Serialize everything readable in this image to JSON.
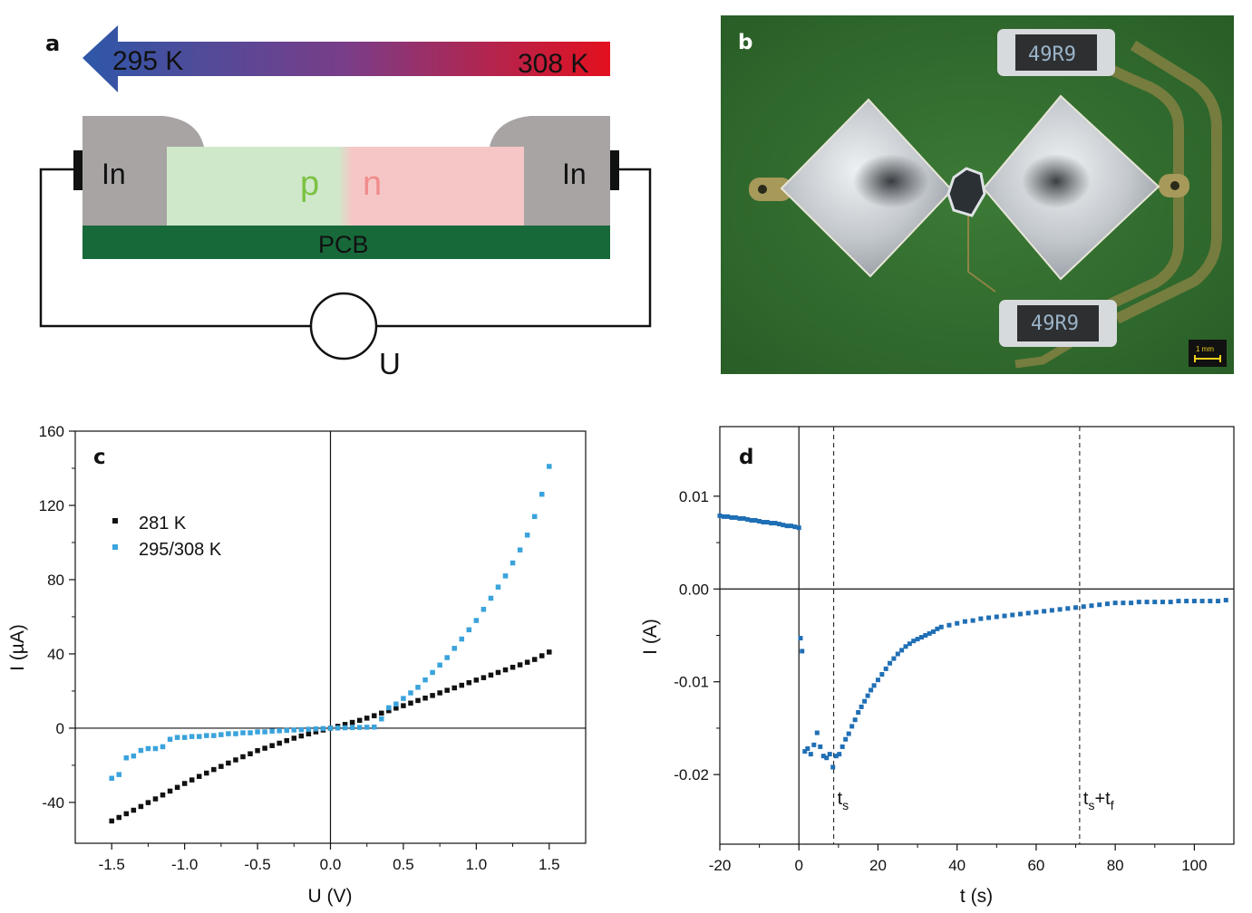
{
  "panel_a": {
    "label": "a",
    "arrow_left_text": "295 K",
    "arrow_right_text": "308 K",
    "contact_left": "In",
    "contact_right": "In",
    "p_label": "p",
    "n_label": "n",
    "pcb_label": "PCB",
    "voltmeter_label": "U",
    "colors": {
      "cold": "#2e57a8",
      "hot": "#e3101e",
      "contact": "#a8a4a4",
      "p_region": "#cfe8c9",
      "n_region": "#f6c6c6",
      "pcb": "#17693a",
      "p_text": "#7cc243",
      "n_text": "#f08c8c"
    }
  },
  "panel_b": {
    "label": "b",
    "resistor_top": "49R9",
    "resistor_bottom": "49R9",
    "scale_bar": "1 mm",
    "colors": {
      "board": "#2f6b2c",
      "metal": "#c9cdd2",
      "trace": "#9a8c48"
    }
  },
  "chart_data": [
    {
      "type": "scatter",
      "panel_label": "c",
      "xlabel": "U (V)",
      "ylabel": "I (µA)",
      "xlim": [
        -1.75,
        1.75
      ],
      "ylim": [
        -62,
        160
      ],
      "xticks": [
        "-1.5",
        "-1.0",
        "-0.5",
        "0.0",
        "0.5",
        "1.0",
        "1.5"
      ],
      "xtick_values": [
        -1.5,
        -1.0,
        -0.5,
        0.0,
        0.5,
        1.0,
        1.5
      ],
      "yticks": [
        "-40",
        "0",
        "40",
        "80",
        "120",
        "160"
      ],
      "ytick_values": [
        -40,
        0,
        40,
        80,
        120,
        160
      ],
      "grid": false,
      "legend_position": "upper-left",
      "zero_lines": true,
      "series": [
        {
          "name": "281 K",
          "color": "#111111",
          "x": [
            -1.5,
            -1.45,
            -1.4,
            -1.35,
            -1.3,
            -1.25,
            -1.2,
            -1.15,
            -1.1,
            -1.05,
            -1.0,
            -0.95,
            -0.9,
            -0.85,
            -0.8,
            -0.75,
            -0.7,
            -0.65,
            -0.6,
            -0.55,
            -0.5,
            -0.45,
            -0.4,
            -0.35,
            -0.3,
            -0.25,
            -0.2,
            -0.15,
            -0.1,
            -0.05,
            0.0,
            0.05,
            0.1,
            0.15,
            0.2,
            0.25,
            0.3,
            0.35,
            0.4,
            0.45,
            0.5,
            0.55,
            0.6,
            0.65,
            0.7,
            0.75,
            0.8,
            0.85,
            0.9,
            0.95,
            1.0,
            1.05,
            1.1,
            1.15,
            1.2,
            1.25,
            1.3,
            1.35,
            1.4,
            1.45,
            1.5
          ],
          "y": [
            -50.0,
            -48.1,
            -46.1,
            -44.2,
            -42.2,
            -40.1,
            -38.1,
            -36.0,
            -33.9,
            -31.9,
            -29.8,
            -27.9,
            -26.0,
            -24.2,
            -22.3,
            -20.6,
            -18.8,
            -17.1,
            -15.4,
            -13.8,
            -12.1,
            -10.8,
            -9.4,
            -8.1,
            -6.7,
            -5.4,
            -4.2,
            -3.1,
            -2.0,
            -1.0,
            0.0,
            1.0,
            2.0,
            3.1,
            4.2,
            5.4,
            6.7,
            8.1,
            9.4,
            10.8,
            12.1,
            13.5,
            14.9,
            16.2,
            17.6,
            19.0,
            20.4,
            21.7,
            23.1,
            24.5,
            25.9,
            27.2,
            28.6,
            30.0,
            31.4,
            32.8,
            34.1,
            35.5,
            37.0,
            39.0,
            41.0
          ]
        },
        {
          "name": "295/308 K",
          "color": "#3aa3dc",
          "x": [
            -1.5,
            -1.45,
            -1.4,
            -1.35,
            -1.3,
            -1.25,
            -1.2,
            -1.15,
            -1.1,
            -1.05,
            -1.0,
            -0.95,
            -0.9,
            -0.85,
            -0.8,
            -0.75,
            -0.7,
            -0.65,
            -0.6,
            -0.55,
            -0.5,
            -0.45,
            -0.4,
            -0.35,
            -0.3,
            -0.25,
            -0.2,
            -0.15,
            -0.1,
            -0.05,
            0.0,
            0.05,
            0.1,
            0.15,
            0.2,
            0.25,
            0.3,
            0.35,
            0.4,
            0.45,
            0.5,
            0.55,
            0.6,
            0.65,
            0.7,
            0.75,
            0.8,
            0.85,
            0.9,
            0.95,
            1.0,
            1.05,
            1.1,
            1.15,
            1.2,
            1.25,
            1.3,
            1.35,
            1.4,
            1.45,
            1.5
          ],
          "y": [
            -27.0,
            -25.0,
            -16.0,
            -15.0,
            -12.0,
            -11.0,
            -11.0,
            -10.0,
            -6.0,
            -5.0,
            -5.0,
            -4.5,
            -4.5,
            -4.0,
            -4.0,
            -3.5,
            -3.0,
            -3.0,
            -2.5,
            -2.5,
            -2.0,
            -2.0,
            -1.6,
            -1.4,
            -1.2,
            -1.0,
            -0.8,
            -0.6,
            -0.4,
            -0.2,
            0.0,
            0.1,
            0.2,
            0.3,
            0.4,
            0.5,
            0.6,
            5.0,
            11.0,
            13.0,
            16.0,
            19.0,
            22.0,
            26.0,
            30.0,
            34.0,
            38.0,
            43.0,
            48.0,
            53.0,
            58.0,
            64.0,
            70.0,
            76.0,
            82.0,
            89.0,
            96.0,
            104.0,
            114.0,
            126.0,
            141.0
          ]
        }
      ]
    },
    {
      "type": "scatter",
      "panel_label": "d",
      "xlabel": "t (s)",
      "ylabel": "I (A)",
      "xlim": [
        -20,
        110
      ],
      "ylim": [
        -0.0275,
        0.0175
      ],
      "xticks": [
        "-20",
        "0",
        "20",
        "40",
        "60",
        "80",
        "100"
      ],
      "xtick_values": [
        -20,
        0,
        20,
        40,
        60,
        80,
        100
      ],
      "yticks": [
        "-0.02",
        "-0.01",
        "0.00",
        "0.01"
      ],
      "ytick_values": [
        -0.02,
        -0.01,
        0.0,
        0.01
      ],
      "grid": false,
      "zero_lines": true,
      "annotations": [
        {
          "label": "t",
          "sub": "s",
          "suffix": "",
          "suffix_sub": "",
          "x": 8.8
        },
        {
          "label": "t",
          "sub": "s",
          "suffix": "+t",
          "suffix_sub": "f",
          "x": 71.0
        }
      ],
      "series": [
        {
          "name": "",
          "color": "#1f6fb5",
          "x": [
            -20,
            -19,
            -18,
            -17,
            -16,
            -15,
            -14,
            -13,
            -12,
            -11,
            -10,
            -9,
            -8,
            -7,
            -6,
            -5,
            -4,
            -3,
            -2,
            -1,
            0,
            0.4,
            0.8,
            1.5,
            2.2,
            3.0,
            3.8,
            4.6,
            5.4,
            6.2,
            7.0,
            7.8,
            8.6,
            9.4,
            10.2,
            11.0,
            11.8,
            12.6,
            13.4,
            14.2,
            15.0,
            15.8,
            16.6,
            17.4,
            18.2,
            19.0,
            20,
            21,
            22,
            23,
            24,
            25,
            26,
            27,
            28,
            29,
            30,
            31,
            32,
            33,
            34,
            35,
            36,
            38,
            40,
            42,
            44,
            46,
            48,
            50,
            52,
            54,
            56,
            58,
            60,
            62,
            64,
            66,
            68,
            70,
            72,
            74,
            76,
            78,
            80,
            82,
            84,
            86,
            88,
            90,
            92,
            94,
            96,
            98,
            100,
            102,
            104,
            106,
            108
          ],
          "y": [
            0.0079,
            0.0078,
            0.0078,
            0.0077,
            0.0077,
            0.0076,
            0.0076,
            0.0075,
            0.0074,
            0.0074,
            0.0073,
            0.0072,
            0.0072,
            0.0071,
            0.0071,
            0.007,
            0.0069,
            0.0068,
            0.0068,
            0.0067,
            0.0066,
            -0.0053,
            -0.0067,
            -0.0175,
            -0.0172,
            -0.0178,
            -0.0168,
            -0.0155,
            -0.017,
            -0.018,
            -0.0182,
            -0.0178,
            -0.0192,
            -0.018,
            -0.0178,
            -0.017,
            -0.0162,
            -0.0156,
            -0.0148,
            -0.0141,
            -0.0133,
            -0.0127,
            -0.0121,
            -0.0115,
            -0.0109,
            -0.0104,
            -0.0098,
            -0.0092,
            -0.0086,
            -0.008,
            -0.0075,
            -0.007,
            -0.0066,
            -0.0062,
            -0.0059,
            -0.0056,
            -0.0054,
            -0.0052,
            -0.005,
            -0.0048,
            -0.0046,
            -0.0043,
            -0.0041,
            -0.0039,
            -0.0037,
            -0.0035,
            -0.0034,
            -0.0032,
            -0.0031,
            -0.003,
            -0.0029,
            -0.0028,
            -0.0027,
            -0.0026,
            -0.0025,
            -0.0024,
            -0.0023,
            -0.0022,
            -0.0021,
            -0.002,
            -0.0019,
            -0.0018,
            -0.0017,
            -0.0016,
            -0.0015,
            -0.0015,
            -0.0015,
            -0.0014,
            -0.0014,
            -0.0014,
            -0.0014,
            -0.0014,
            -0.0013,
            -0.0013,
            -0.0013,
            -0.0013,
            -0.0013,
            -0.0013,
            -0.0012
          ]
        }
      ]
    }
  ]
}
